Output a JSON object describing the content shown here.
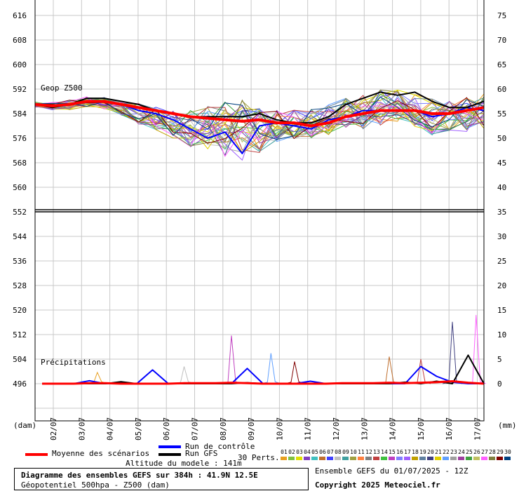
{
  "chart_data": {
    "type": "line",
    "panels": [
      {
        "name": "z500",
        "label": "Geop Z500",
        "y_ticks_left": [
          "616",
          "608",
          "600",
          "592",
          "584",
          "576",
          "568",
          "560"
        ],
        "y_ticks_right": [
          "75",
          "70",
          "65",
          "60",
          "55",
          "50",
          "45",
          "40"
        ]
      },
      {
        "name": "precip",
        "label": "Précipitations",
        "y_ticks_left": [
          "552",
          "544",
          "536",
          "528",
          "520",
          "512",
          "504",
          "496"
        ],
        "y_ticks_right": [
          "35",
          "30",
          "25",
          "20",
          "15",
          "10",
          "5",
          "0"
        ]
      }
    ],
    "x_ticks": [
      "02/07",
      "03/07",
      "04/07",
      "05/07",
      "06/07",
      "07/07",
      "08/07",
      "09/07",
      "10/07",
      "11/07",
      "12/07",
      "13/07",
      "14/07",
      "15/07",
      "16/07",
      "17/07"
    ],
    "left_unit": "(dam)",
    "right_unit": "(mm)",
    "z500_series": {
      "mean": [
        587,
        586.5,
        587,
        588,
        588,
        587,
        586,
        585,
        584,
        583,
        582.5,
        582,
        581.5,
        582,
        581,
        581,
        580,
        581,
        583,
        584,
        585,
        585,
        585,
        584,
        584,
        585,
        586
      ],
      "gfs": [
        587,
        586,
        587,
        589,
        589,
        588,
        587,
        585,
        584,
        583,
        583,
        583,
        583,
        584,
        582,
        581,
        581,
        583,
        587,
        589,
        591,
        590,
        591,
        588,
        586,
        586,
        588
      ],
      "control": [
        587,
        586,
        587,
        588,
        588,
        587,
        585,
        584,
        582,
        579,
        576,
        578,
        571,
        580,
        581,
        580,
        579,
        582,
        583,
        585,
        585,
        585,
        585,
        583,
        584,
        586,
        585
      ],
      "upper": [
        588,
        588,
        589,
        590,
        590,
        589,
        588,
        587,
        586,
        587,
        588,
        590,
        591,
        587,
        586,
        586,
        587,
        588,
        590,
        592,
        593,
        593,
        592,
        590,
        590,
        591,
        592
      ],
      "lower": [
        586,
        585,
        585,
        586,
        585,
        583,
        580,
        578,
        575,
        572,
        570,
        568,
        567,
        570,
        574,
        575,
        575,
        576,
        578,
        578,
        579,
        580,
        578,
        576,
        576,
        577,
        578
      ]
    },
    "precip_series": {
      "mean": [
        0,
        0,
        0,
        0.1,
        0.1,
        0,
        0,
        0,
        0,
        0.1,
        0.1,
        0.1,
        0.2,
        0.1,
        0,
        0,
        0,
        0,
        0,
        0.1,
        0.1,
        0.1,
        0.2,
        0.1,
        0.2,
        0.3,
        0.5,
        0.2,
        0
      ],
      "gfs": [
        0,
        0,
        0,
        0,
        0,
        0.4,
        0,
        0,
        0,
        0,
        0,
        0,
        0,
        0.2,
        0,
        0,
        0,
        0,
        0,
        0,
        0,
        0,
        0,
        0.3,
        0,
        0.5,
        0,
        5.8,
        0
      ],
      "control": [
        0,
        0,
        0,
        0.6,
        0,
        0.2,
        0,
        2.8,
        0,
        0,
        0,
        0,
        0,
        3.1,
        0,
        0,
        0,
        0.5,
        0,
        0,
        0,
        0,
        0,
        0,
        3.5,
        1.5,
        0.3,
        0,
        0
      ],
      "peaks": [
        {
          "x_index": 3.5,
          "value": 2.3
        },
        {
          "x_index": 9,
          "value": 3.5
        },
        {
          "x_index": 12,
          "value": 9.8
        },
        {
          "x_index": 14.5,
          "value": 6.2
        },
        {
          "x_index": 16,
          "value": 4.5
        },
        {
          "x_index": 22,
          "value": 5.5
        },
        {
          "x_index": 24,
          "value": 5.0
        },
        {
          "x_index": 26,
          "value": 12.6
        },
        {
          "x_index": 27.5,
          "value": 14.0
        }
      ]
    }
  },
  "legend": {
    "mean_label": "Moyenne des scénarios",
    "control_label": "Run de contrôle",
    "gfs_label": "Run GFS",
    "perts_label": "30 Perts.",
    "altitude": "Altitude du modele : 141m",
    "colors": {
      "mean": "#ff0000",
      "control": "#0000ff",
      "gfs": "#000000"
    },
    "pert_numbers": [
      "01",
      "02",
      "03",
      "04",
      "05",
      "06",
      "07",
      "08",
      "09",
      "10",
      "11",
      "12",
      "13",
      "14",
      "15",
      "16",
      "17",
      "18",
      "19",
      "20",
      "21",
      "22",
      "23",
      "24",
      "25",
      "26",
      "27",
      "28",
      "29",
      "30"
    ],
    "pert_colors": [
      "#e8a020",
      "#80c040",
      "#e0e000",
      "#8040c0",
      "#40c0c0",
      "#c07030",
      "#4040ff",
      "#c0c0c0",
      "#40a0a0",
      "#a0a040",
      "#ff8040",
      "#808080",
      "#c04040",
      "#40c040",
      "#c040c0",
      "#8080ff",
      "#a060ff",
      "#c0a000",
      "#6080a0",
      "#404080",
      "#e0d000",
      "#60a0ff",
      "#a0a0a0",
      "#a040a0",
      "#40a040",
      "#c0c060",
      "#ff60ff",
      "#808040",
      "#800000",
      "#004080"
    ]
  },
  "footer": {
    "title_line1": "Diagramme des ensembles GEFS sur 384h : 41.9N 12.5E",
    "title_line2": "Géopotentiel 500hpa - Z500 (dam)",
    "run_info": "Ensemble GEFS du 01/07/2025 - 12Z",
    "copyright": "Copyright 2025 Meteociel.fr"
  }
}
